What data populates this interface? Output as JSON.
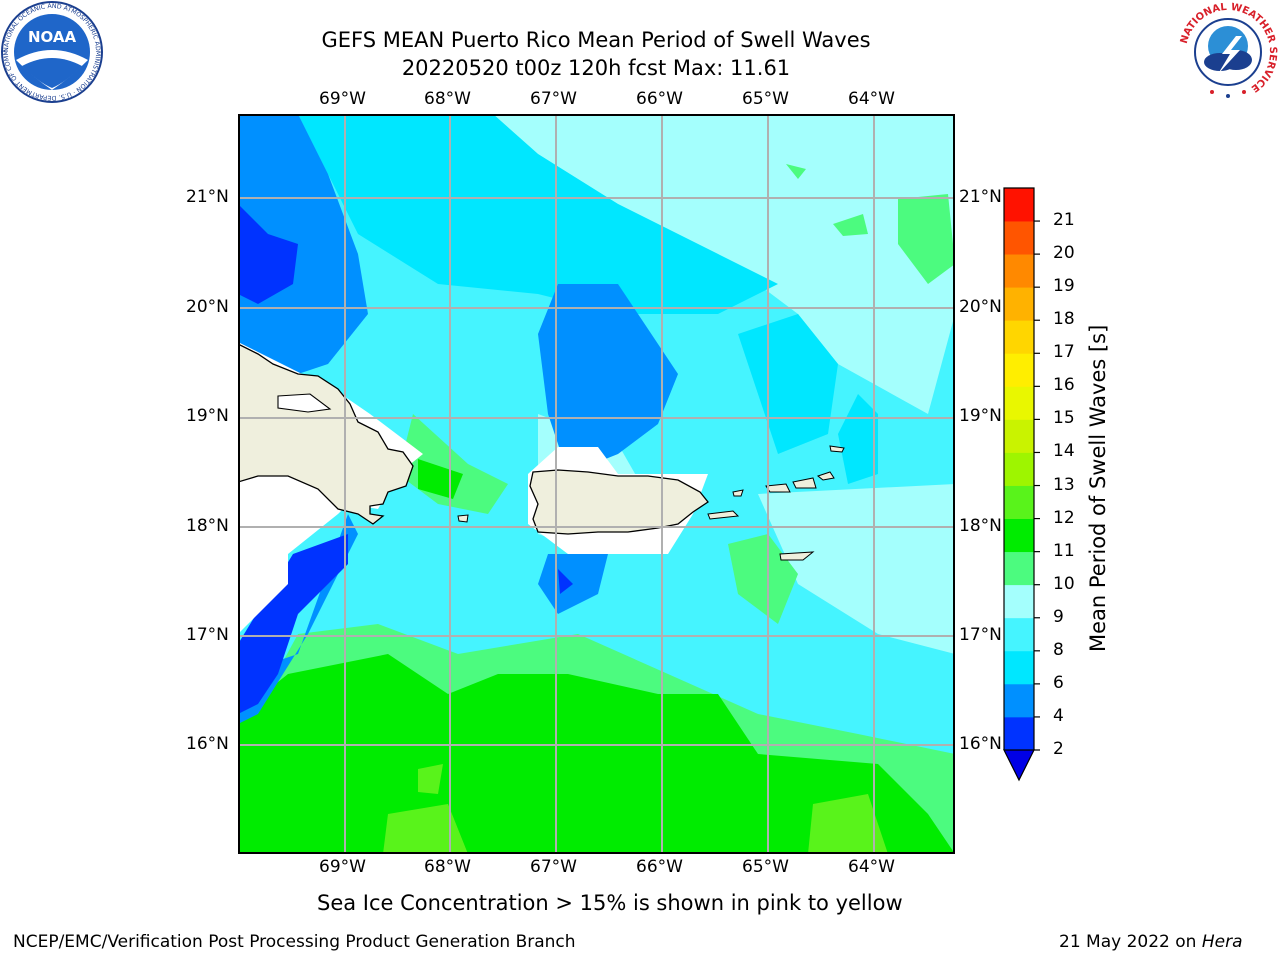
{
  "title": {
    "line1": "GEFS MEAN Puerto Rico Mean Period of Swell Waves",
    "line2": "20220520 t00z 120h fcst   Max: 11.61"
  },
  "map": {
    "lon_labels": [
      "69°W",
      "68°W",
      "67°W",
      "66°W",
      "65°W",
      "64°W"
    ],
    "lat_labels": [
      "21°N",
      "20°N",
      "19°N",
      "18°N",
      "17°N",
      "16°N"
    ],
    "lon_range": [
      -70.0,
      -63.25
    ],
    "lat_range": [
      15.0,
      21.75
    ]
  },
  "colorbar": {
    "label": "Mean Period of Swell Waves [s]",
    "ticks": [
      "2",
      "4",
      "6",
      "8",
      "9",
      "10",
      "11",
      "12",
      "13",
      "14",
      "15",
      "16",
      "17",
      "18",
      "19",
      "20",
      "21"
    ],
    "colors": [
      "#0033ff",
      "#0090ff",
      "#00e7ff",
      "#45f4ff",
      "#a4fffd",
      "#4cfb7f",
      "#00ec00",
      "#59f31b",
      "#9ef500",
      "#c9f300",
      "#e9f700",
      "#ffee00",
      "#ffd600",
      "#ffb200",
      "#ff8900",
      "#ff5500",
      "#ff1200"
    ],
    "extend_color": "#0000e6"
  },
  "caption": "Sea Ice Concentration > 15% is shown in pink to yellow",
  "footer": {
    "left": "NCEP/EMC/Verification Post Processing Product Generation Branch",
    "date": "21 May 2022 on ",
    "host": "Hera"
  },
  "logos": {
    "noaa_text": "NOAA",
    "noaa_ring": "NATIONAL OCEANIC AND ATMOSPHERIC ADMINISTRATION · U.S. DEPARTMENT OF COMMERCE",
    "nws_ring": "NATIONAL WEATHER SERVICE"
  }
}
